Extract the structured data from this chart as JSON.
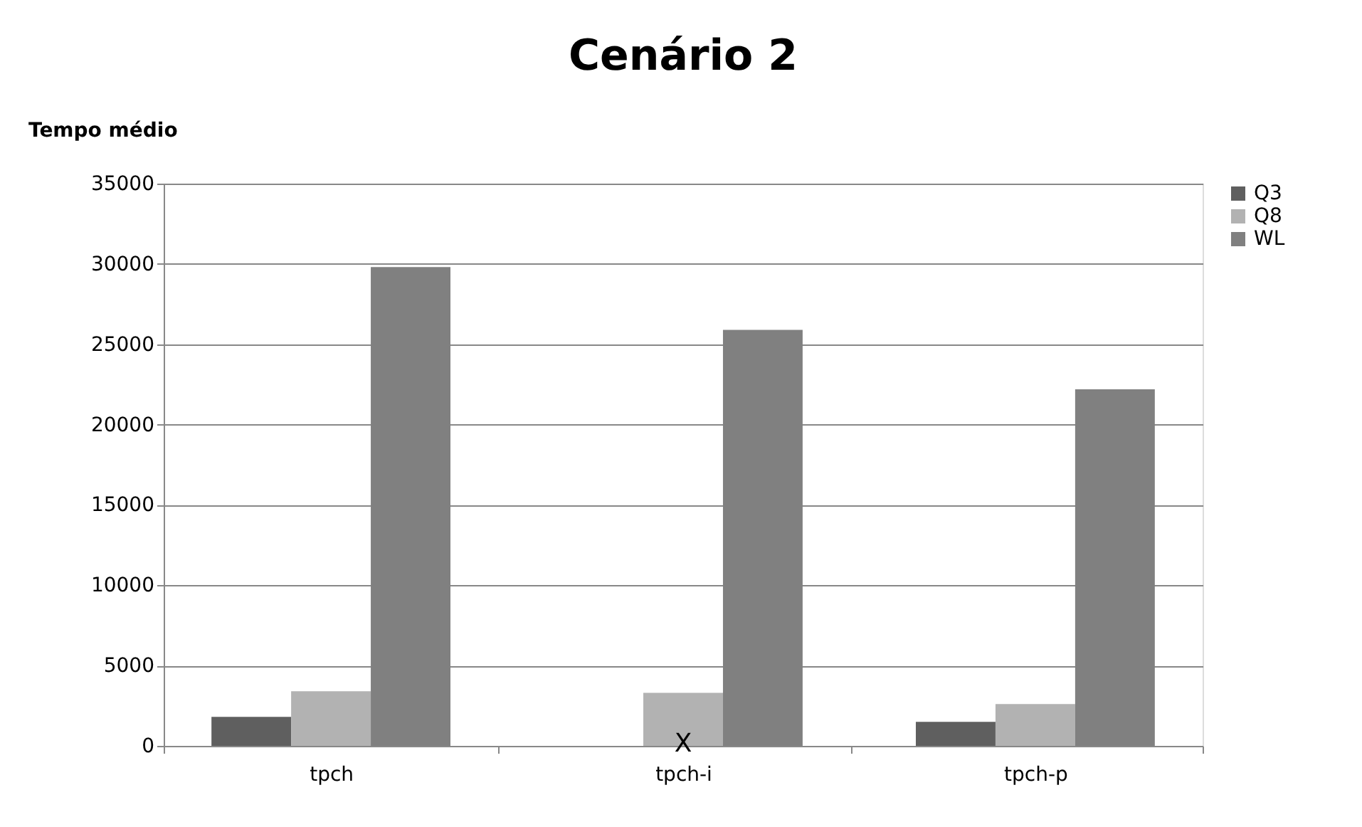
{
  "chart_data": {
    "type": "bar",
    "title": "Cenário 2",
    "ylabel": "Tempo médio",
    "categories": [
      "tpch",
      "tpch-i",
      "tpch-p"
    ],
    "series": [
      {
        "name": "Q3",
        "color": "#5f5f5f",
        "values": [
          1800,
          null,
          1500
        ]
      },
      {
        "name": "Q8",
        "color": "#b2b2b2",
        "values": [
          3400,
          3300,
          2600
        ]
      },
      {
        "name": "WL",
        "color": "#808080",
        "values": [
          29800,
          25900,
          22200
        ]
      }
    ],
    "annotations": [
      {
        "text": "X",
        "x": "tpch-i",
        "y": 0
      }
    ],
    "ylim": [
      0,
      35000
    ],
    "yticks": [
      0,
      5000,
      10000,
      15000,
      20000,
      25000,
      30000,
      35000
    ],
    "grid": "y",
    "legend": "right"
  }
}
